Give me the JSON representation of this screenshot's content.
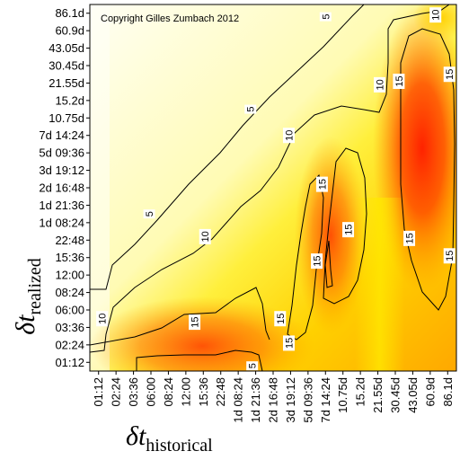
{
  "chart_data": {
    "type": "heatmap",
    "title": "",
    "annotation": "Copyright Gilles Zumbach 2012",
    "x_axis": {
      "symbol": "δt",
      "subscript": "historical",
      "ticks": [
        "01:12",
        "02:24",
        "03:36",
        "06:00",
        "08:24",
        "12:00",
        "15:36",
        "22:48",
        "1d 08:24",
        "1d 21:36",
        "2d 16:48",
        "3d 19:12",
        "5d 09:36",
        "7d 14:24",
        "10.75d",
        "15.2d",
        "21.55d",
        "30.45d",
        "43.05d",
        "60.9d",
        "86.1d"
      ]
    },
    "y_axis": {
      "symbol": "δt",
      "subscript": "realized",
      "ticks": [
        "01:12",
        "02:24",
        "03:36",
        "06:00",
        "08:24",
        "12:00",
        "15:36",
        "22:48",
        "1d 08:24",
        "1d 21:36",
        "2d 16:48",
        "3d 19:12",
        "5d 09:36",
        "7d 14:24",
        "10.75d",
        "15.2d",
        "21.55d",
        "30.45d",
        "43.05d",
        "60.9d",
        "86.1d"
      ]
    },
    "contour_levels": [
      5,
      10,
      15
    ],
    "contour_labels": [
      {
        "text": "5",
        "x": 13.5,
        "y": 20.3
      },
      {
        "text": "5",
        "x": 9.2,
        "y": 15.0
      },
      {
        "text": "5",
        "x": 3.4,
        "y": 9.0
      },
      {
        "text": "5",
        "x": 9.3,
        "y": 0.3
      },
      {
        "text": "10",
        "x": 19.8,
        "y": 20.4
      },
      {
        "text": "10",
        "x": 16.6,
        "y": 16.4
      },
      {
        "text": "10",
        "x": 11.4,
        "y": 13.5
      },
      {
        "text": "10",
        "x": 6.6,
        "y": 7.7
      },
      {
        "text": "10",
        "x": 0.7,
        "y": 3.0
      },
      {
        "text": "15",
        "x": 17.7,
        "y": 16.6
      },
      {
        "text": "15",
        "x": 20.6,
        "y": 17.0
      },
      {
        "text": "15",
        "x": 13.3,
        "y": 10.7
      },
      {
        "text": "15",
        "x": 14.8,
        "y": 8.1
      },
      {
        "text": "15",
        "x": 18.3,
        "y": 7.6
      },
      {
        "text": "15",
        "x": 13.0,
        "y": 6.3
      },
      {
        "text": "15",
        "x": 20.6,
        "y": 6.6
      },
      {
        "text": "15",
        "x": 10.9,
        "y": 3.0
      },
      {
        "text": "15",
        "x": 6.0,
        "y": 2.8
      },
      {
        "text": "15",
        "x": 11.4,
        "y": 1.6
      }
    ],
    "color_scale": {
      "low": "#fffff0",
      "mid": "#ffe600",
      "high": "#ff1a00"
    }
  }
}
